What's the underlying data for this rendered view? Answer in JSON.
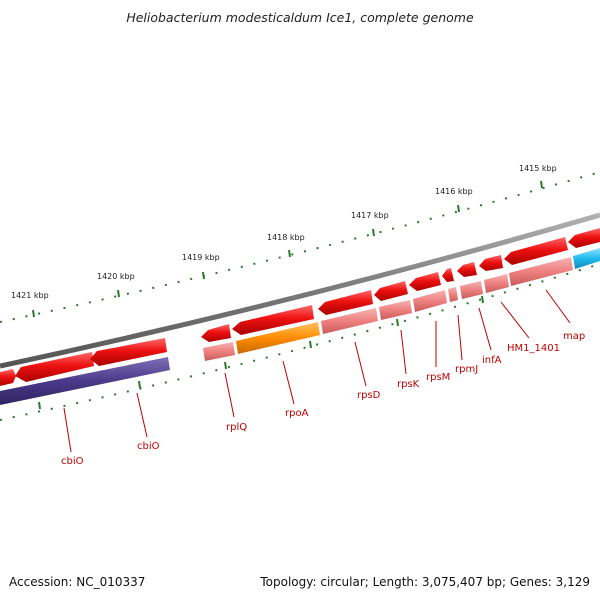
{
  "title": "Heliobacterium modesticaldum Ice1, complete genome",
  "footer": {
    "accession": "Accession: NC_010337",
    "summary": "Topology: circular; Length: 3,075,407 bp; Genes: 3,129"
  },
  "kbp_labels": [
    "1421 kbp",
    "1420 kbp",
    "1419 kbp",
    "1418 kbp",
    "1417 kbp",
    "1416 kbp",
    "1415 kbp"
  ],
  "gene_labels": [
    "cbiO",
    "cbiO",
    "rplQ",
    "rpoA",
    "rpsD",
    "rpsK",
    "rpsM",
    "rpmJ",
    "infA",
    "HM1_1401",
    "map"
  ],
  "colors": {
    "backbone": "#808080",
    "forward_cds": "#ee1111",
    "rna_light": "#f08888",
    "rpoA": "#ff8c00",
    "cbiO_band": "#4a3a8a",
    "map_band": "#22bbee",
    "tick": "#2a7a2a",
    "label": "#c00000"
  }
}
